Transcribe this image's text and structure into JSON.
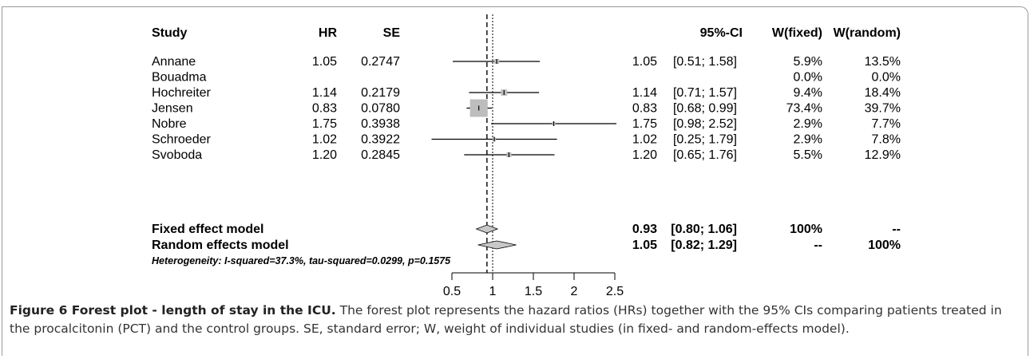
{
  "chart_data": {
    "type": "forest",
    "columns": [
      "Study",
      "HR",
      "SE",
      "95%-CI",
      "W(fixed)",
      "W(random)"
    ],
    "studies": [
      {
        "name": "Annane",
        "hr": "1.05",
        "se": "0.2747",
        "est": "1.05",
        "ci": "[0.51; 1.58]",
        "w_fixed": "5.9%",
        "w_random": "13.5%",
        "value": 1.05,
        "lower": 0.51,
        "upper": 1.58,
        "weight": 5.9
      },
      {
        "name": "Bouadma",
        "hr": "",
        "se": "",
        "est": "",
        "ci": "",
        "w_fixed": "0.0%",
        "w_random": "0.0%",
        "value": null,
        "lower": null,
        "upper": null,
        "weight": 0
      },
      {
        "name": "Hochreiter",
        "hr": "1.14",
        "se": "0.2179",
        "est": "1.14",
        "ci": "[0.71; 1.57]",
        "w_fixed": "9.4%",
        "w_random": "18.4%",
        "value": 1.14,
        "lower": 0.71,
        "upper": 1.57,
        "weight": 9.4
      },
      {
        "name": "Jensen",
        "hr": "0.83",
        "se": "0.0780",
        "est": "0.83",
        "ci": "[0.68; 0.99]",
        "w_fixed": "73.4%",
        "w_random": "39.7%",
        "value": 0.83,
        "lower": 0.68,
        "upper": 0.99,
        "weight": 73.4
      },
      {
        "name": "Nobre",
        "hr": "1.75",
        "se": "0.3938",
        "est": "1.75",
        "ci": "[0.98; 2.52]",
        "w_fixed": "2.9%",
        "w_random": "7.7%",
        "value": 1.75,
        "lower": 0.98,
        "upper": 2.52,
        "weight": 2.9
      },
      {
        "name": "Schroeder",
        "hr": "1.02",
        "se": "0.3922",
        "est": "1.02",
        "ci": "[0.25; 1.79]",
        "w_fixed": "2.9%",
        "w_random": "7.8%",
        "value": 1.02,
        "lower": 0.25,
        "upper": 1.79,
        "weight": 2.9
      },
      {
        "name": "Svoboda",
        "hr": "1.20",
        "se": "0.2845",
        "est": "1.20",
        "ci": "[0.65; 1.76]",
        "w_fixed": "5.5%",
        "w_random": "12.9%",
        "value": 1.2,
        "lower": 0.65,
        "upper": 1.76,
        "weight": 5.5
      }
    ],
    "summaries": [
      {
        "name": "Fixed effect model",
        "est": "0.93",
        "ci": "[0.80; 1.06]",
        "w_fixed": "100%",
        "w_random": "--",
        "value": 0.93,
        "lower": 0.8,
        "upper": 1.06
      },
      {
        "name": "Random effects model",
        "est": "1.05",
        "ci": "[0.82; 1.29]",
        "w_fixed": "--",
        "w_random": "100%",
        "value": 1.05,
        "lower": 0.82,
        "upper": 1.29
      }
    ],
    "heterogeneity": "Heterogeneity: I-squared=37.3%, tau-squared=0.0299, p=0.1575",
    "xaxis": {
      "ticks": [
        0.5,
        1,
        1.5,
        2,
        2.5
      ],
      "tick_labels": [
        "0.5",
        "1",
        "1.5",
        "2",
        "2.5"
      ],
      "range": [
        0.5,
        2.5
      ]
    },
    "view_range": [
      0.25,
      2.52
    ],
    "reference_line": 1,
    "fixed_line": 0.93
  },
  "caption": {
    "title": "Figure 6 Forest plot - length of stay in the ICU.",
    "text": " The forest plot represents the hazard ratios (HRs) together with the 95% CIs comparing patients treated in the procalcitonin (PCT) and the control groups. SE, standard error; W, weight of individual studies (in fixed- and random-effects model)."
  }
}
